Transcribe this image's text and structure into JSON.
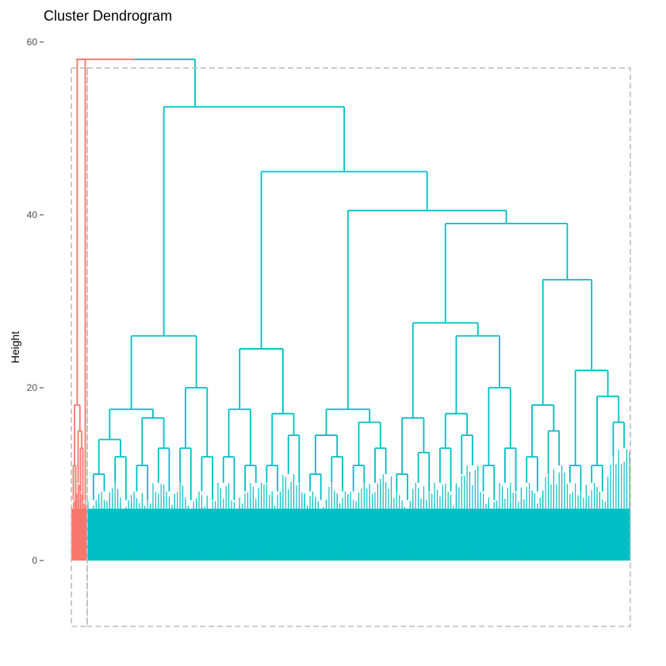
{
  "chart_data": {
    "type": "dendrogram",
    "title": "Cluster Dendrogram",
    "xlabel": "",
    "ylabel": "Height",
    "ylim": [
      -7.5,
      60
    ],
    "yticks": [
      0,
      20,
      40,
      60
    ],
    "grid": false,
    "cluster_colors": [
      "#F8766D",
      "#00BFC4"
    ],
    "cluster_rectangles": true,
    "root_height": 58,
    "clusters": [
      {
        "color": "#F8766D",
        "merge_height": 58,
        "tree": {
          "h": 58,
          "c": [
            {
              "h": 18,
              "c": [
                {
                  "h": 11,
                  "c": [
                    {
                      "h": 7
                    },
                    {
                      "h": 6
                    }
                  ]
                },
                {
                  "h": 15,
                  "c": [
                    {
                      "h": 9
                    },
                    {
                      "h": 13,
                      "c": [
                        {
                          "h": 8
                        },
                        {
                          "h": 7
                        }
                      ]
                    }
                  ]
                }
              ]
            },
            {
              "h": 7
            }
          ]
        }
      },
      {
        "color": "#00BFC4",
        "merge_height": 52.5,
        "tree": {
          "h": 52.5,
          "c": [
            {
              "h": 26,
              "c": [
                {
                  "h": 17.5,
                  "c": [
                    {
                      "h": 14,
                      "c": [
                        {
                          "h": 10,
                          "c": [
                            {
                              "h": 7
                            },
                            {
                              "h": 8
                            }
                          ]
                        },
                        {
                          "h": 12,
                          "c": [
                            {
                              "h": 9
                            },
                            {
                              "h": 7
                            }
                          ]
                        }
                      ]
                    },
                    {
                      "h": 16.5,
                      "c": [
                        {
                          "h": 11,
                          "c": [
                            {
                              "h": 8
                            },
                            {
                              "h": 7
                            }
                          ]
                        },
                        {
                          "h": 13,
                          "c": [
                            {
                              "h": 9
                            },
                            {
                              "h": 8
                            }
                          ]
                        }
                      ]
                    }
                  ]
                },
                {
                  "h": 20,
                  "c": [
                    {
                      "h": 13,
                      "c": [
                        {
                          "h": 9
                        },
                        {
                          "h": 7
                        }
                      ]
                    },
                    {
                      "h": 12,
                      "c": [
                        {
                          "h": 8
                        },
                        {
                          "h": 7
                        }
                      ]
                    }
                  ]
                }
              ]
            },
            {
              "h": 45,
              "c": [
                {
                  "h": 24.5,
                  "c": [
                    {
                      "h": 17.5,
                      "c": [
                        {
                          "h": 12,
                          "c": [
                            {
                              "h": 9
                            },
                            {
                              "h": 7
                            }
                          ]
                        },
                        {
                          "h": 11,
                          "c": [
                            {
                              "h": 8
                            },
                            {
                              "h": 9
                            }
                          ]
                        }
                      ]
                    },
                    {
                      "h": 17,
                      "c": [
                        {
                          "h": 11,
                          "c": [
                            {
                              "h": 9
                            },
                            {
                              "h": 8
                            }
                          ]
                        },
                        {
                          "h": 14.5,
                          "c": [
                            {
                              "h": 10
                            },
                            {
                              "h": 9
                            }
                          ]
                        }
                      ]
                    }
                  ]
                },
                {
                  "h": 40.5,
                  "c": [
                    {
                      "h": 17.5,
                      "c": [
                        {
                          "h": 14.5,
                          "c": [
                            {
                              "h": 10,
                              "c": [
                                {
                                  "h": 8
                                },
                                {
                                  "h": 7
                                }
                              ]
                            },
                            {
                              "h": 12,
                              "c": [
                                {
                                  "h": 9
                                },
                                {
                                  "h": 8
                                }
                              ]
                            }
                          ]
                        },
                        {
                          "h": 16,
                          "c": [
                            {
                              "h": 11,
                              "c": [
                                {
                                  "h": 8
                                },
                                {
                                  "h": 9
                                }
                              ]
                            },
                            {
                              "h": 13,
                              "c": [
                                {
                                  "h": 9
                                },
                                {
                                  "h": 10
                                }
                              ]
                            }
                          ]
                        }
                      ]
                    },
                    {
                      "h": 39,
                      "c": [
                        {
                          "h": 27.5,
                          "c": [
                            {
                              "h": 16.5,
                              "c": [
                                {
                                  "h": 10,
                                  "c": [
                                    {
                                      "h": 8
                                    },
                                    {
                                      "h": 7
                                    }
                                  ]
                                },
                                {
                                  "h": 12.5,
                                  "c": [
                                    {
                                      "h": 9
                                    },
                                    {
                                      "h": 8
                                    }
                                  ]
                                }
                              ]
                            },
                            {
                              "h": 26,
                              "c": [
                                {
                                  "h": 17,
                                  "c": [
                                    {
                                      "h": 13,
                                      "c": [
                                        {
                                          "h": 9
                                        },
                                        {
                                          "h": 8
                                        }
                                      ]
                                    },
                                    {
                                      "h": 14.5,
                                      "c": [
                                        {
                                          "h": 10
                                        },
                                        {
                                          "h": 11
                                        }
                                      ]
                                    }
                                  ]
                                },
                                {
                                  "h": 20,
                                  "c": [
                                    {
                                      "h": 11,
                                      "c": [
                                        {
                                          "h": 8
                                        },
                                        {
                                          "h": 7
                                        }
                                      ]
                                    },
                                    {
                                      "h": 13,
                                      "c": [
                                        {
                                          "h": 9
                                        },
                                        {
                                          "h": 8
                                        }
                                      ]
                                    }
                                  ]
                                }
                              ]
                            }
                          ]
                        },
                        {
                          "h": 32.5,
                          "c": [
                            {
                              "h": 18,
                              "c": [
                                {
                                  "h": 12,
                                  "c": [
                                    {
                                      "h": 9
                                    },
                                    {
                                      "h": 8
                                    }
                                  ]
                                },
                                {
                                  "h": 15,
                                  "c": [
                                    {
                                      "h": 10
                                    },
                                    {
                                      "h": 11
                                    }
                                  ]
                                }
                              ]
                            },
                            {
                              "h": 22,
                              "c": [
                                {
                                  "h": 11,
                                  "c": [
                                    {
                                      "h": 9
                                    },
                                    {
                                      "h": 8
                                    }
                                  ]
                                },
                                {
                                  "h": 19,
                                  "c": [
                                    {
                                      "h": 11,
                                      "c": [
                                        {
                                          "h": 9
                                        },
                                        {
                                          "h": 8
                                        }
                                      ]
                                    },
                                    {
                                      "h": 16,
                                      "c": [
                                        {
                                          "h": 12
                                        },
                                        {
                                          "h": 13
                                        }
                                      ]
                                    }
                                  ]
                                }
                              ]
                            }
                          ]
                        }
                      ]
                    }
                  ]
                }
              ]
            }
          ]
        }
      }
    ]
  }
}
